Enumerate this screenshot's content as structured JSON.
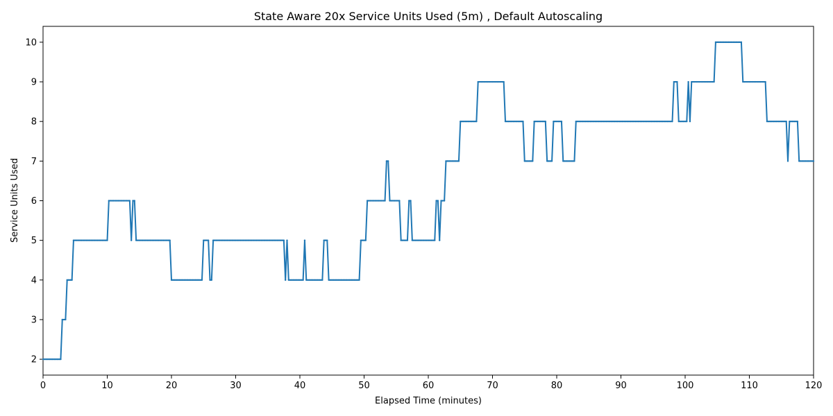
{
  "chart_data": {
    "type": "line",
    "title": "State Aware 20x Service Units Used (5m) , Default Autoscaling",
    "xlabel": "Elapsed Time (minutes)",
    "ylabel": "Service Units Used",
    "xlim": [
      0,
      120
    ],
    "ylim": [
      1.6,
      10.4
    ],
    "xticks": [
      0,
      10,
      20,
      30,
      40,
      50,
      60,
      70,
      80,
      90,
      100,
      110,
      120
    ],
    "yticks": [
      2,
      3,
      4,
      5,
      6,
      7,
      8,
      9,
      10
    ],
    "grid": false,
    "legend": "none",
    "series_color": "#1f77b4",
    "marker_interval_minutes": 0.25,
    "series": [
      {
        "steps": [
          [
            0,
            2
          ],
          [
            2.8,
            3
          ],
          [
            3.6,
            4
          ],
          [
            4.7,
            5
          ],
          [
            10.1,
            6
          ],
          [
            13.6,
            5
          ],
          [
            14.0,
            6
          ],
          [
            14.5,
            5
          ],
          [
            19.9,
            4
          ],
          [
            25.0,
            5
          ],
          [
            25.8,
            4
          ],
          [
            26.4,
            5
          ],
          [
            37.6,
            4
          ],
          [
            38.0,
            5
          ],
          [
            38.2,
            4
          ],
          [
            40.7,
            5
          ],
          [
            40.9,
            4
          ],
          [
            43.6,
            5
          ],
          [
            44.3,
            4
          ],
          [
            49.4,
            5
          ],
          [
            50.4,
            6
          ],
          [
            53.5,
            7
          ],
          [
            53.8,
            6
          ],
          [
            55.6,
            5
          ],
          [
            56.9,
            6
          ],
          [
            57.4,
            5
          ],
          [
            61.1,
            6
          ],
          [
            61.7,
            5
          ],
          [
            62.0,
            6
          ],
          [
            62.7,
            7
          ],
          [
            64.9,
            8
          ],
          [
            67.6,
            9
          ],
          [
            71.9,
            8
          ],
          [
            74.9,
            7
          ],
          [
            76.3,
            8
          ],
          [
            78.3,
            7
          ],
          [
            79.5,
            8
          ],
          [
            81.0,
            7
          ],
          [
            83.0,
            8
          ],
          [
            98.2,
            9
          ],
          [
            98.9,
            8
          ],
          [
            100.4,
            9
          ],
          [
            100.7,
            8
          ],
          [
            101.0,
            9
          ],
          [
            104.6,
            10
          ],
          [
            109.0,
            9
          ],
          [
            112.6,
            8
          ],
          [
            115.9,
            7
          ],
          [
            116.1,
            8
          ],
          [
            117.6,
            7
          ],
          [
            120,
            7
          ]
        ]
      }
    ]
  }
}
